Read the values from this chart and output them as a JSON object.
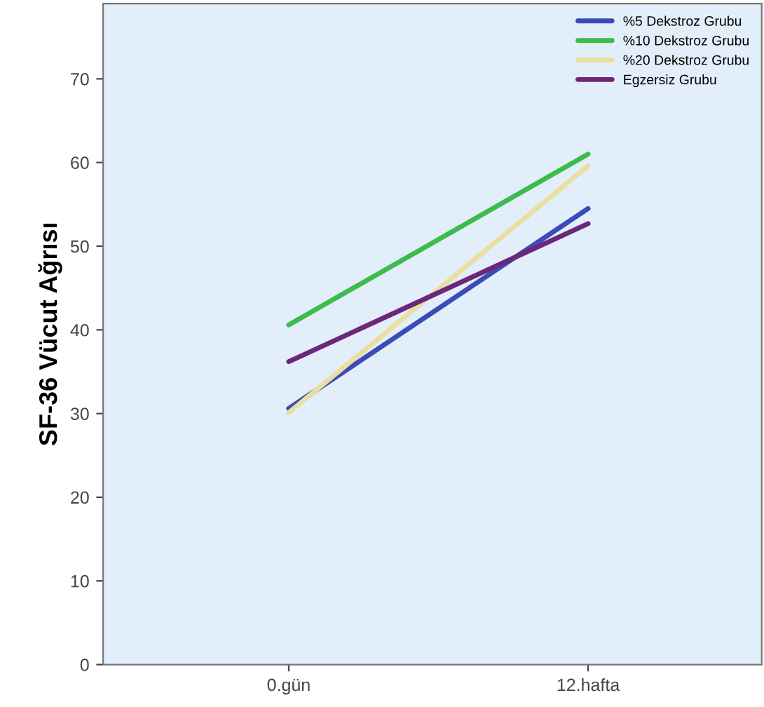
{
  "chart_data": {
    "type": "line",
    "ylabel": "SF-36 Vücut Ağrısı",
    "categories": [
      "0.gün",
      "12.hafta"
    ],
    "series": [
      {
        "name": "%5 Dekstroz Grubu",
        "color": "#3b4cb5",
        "values": [
          30.6,
          54.5
        ]
      },
      {
        "name": "%10 Dekstroz Grubu",
        "color": "#3dbb4c",
        "values": [
          40.6,
          61.0
        ]
      },
      {
        "name": "%20 Dekstroz Grubu",
        "color": "#e8dfa0",
        "values": [
          30.1,
          59.6
        ]
      },
      {
        "name": "Egzersiz Grubu",
        "color": "#6b2878",
        "values": [
          36.2,
          52.7
        ]
      }
    ],
    "ylim": [
      0,
      79
    ],
    "yticks": [
      0,
      10,
      20,
      30,
      40,
      50,
      60,
      70
    ],
    "grid": false,
    "legend": "top right",
    "marker": "none",
    "line_style": "solid"
  }
}
